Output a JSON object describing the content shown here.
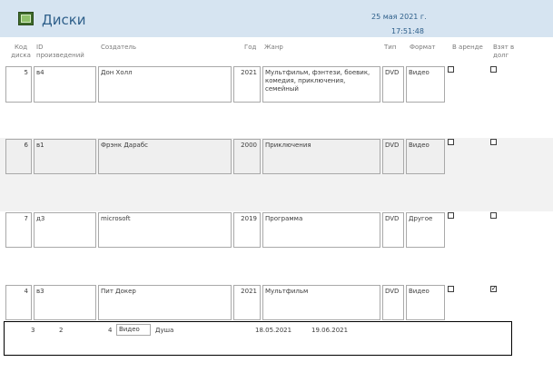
{
  "form": {
    "title": "Диски",
    "date": "25 мая 2021 г.",
    "time": "17:51:48"
  },
  "columns": {
    "code": "Код диска",
    "work_id": "ID произведений",
    "creator": "Создатель",
    "year": "Год",
    "genre": "Жанр",
    "type": "Тип",
    "format": "Формат",
    "rented": "В аренде",
    "taken": "Взят в долг"
  },
  "rows": [
    {
      "code": "5",
      "work_id": "в4",
      "creator": "Дон Холл",
      "year": "2021",
      "genre": "Мультфильм, фэнтези, боевик, комедия, приключения, семейный",
      "type": "DVD",
      "format": "Видео",
      "rented": false,
      "taken": false
    },
    {
      "code": "6",
      "work_id": "в1",
      "creator": "Фрэнк Дарабс",
      "year": "2000",
      "genre": "Приключения",
      "type": "DVD",
      "format": "Видео",
      "rented": false,
      "taken": false
    },
    {
      "code": "7",
      "work_id": "д3",
      "creator": "microsoft",
      "year": "2019",
      "genre": "Программа",
      "type": "DVD",
      "format": "Другое",
      "rented": false,
      "taken": false
    },
    {
      "code": "4",
      "work_id": "в3",
      "creator": "Пит Докер",
      "year": "2021",
      "genre": "Мультфильм",
      "type": "DVD",
      "format": "Видео",
      "rented": false,
      "taken": true
    }
  ],
  "subform": {
    "c1": "3",
    "c2": "2",
    "c3": "4",
    "format": "Видео",
    "name": "Душа",
    "date_from": "18.05.2021",
    "date_to": "19.06.2021"
  }
}
